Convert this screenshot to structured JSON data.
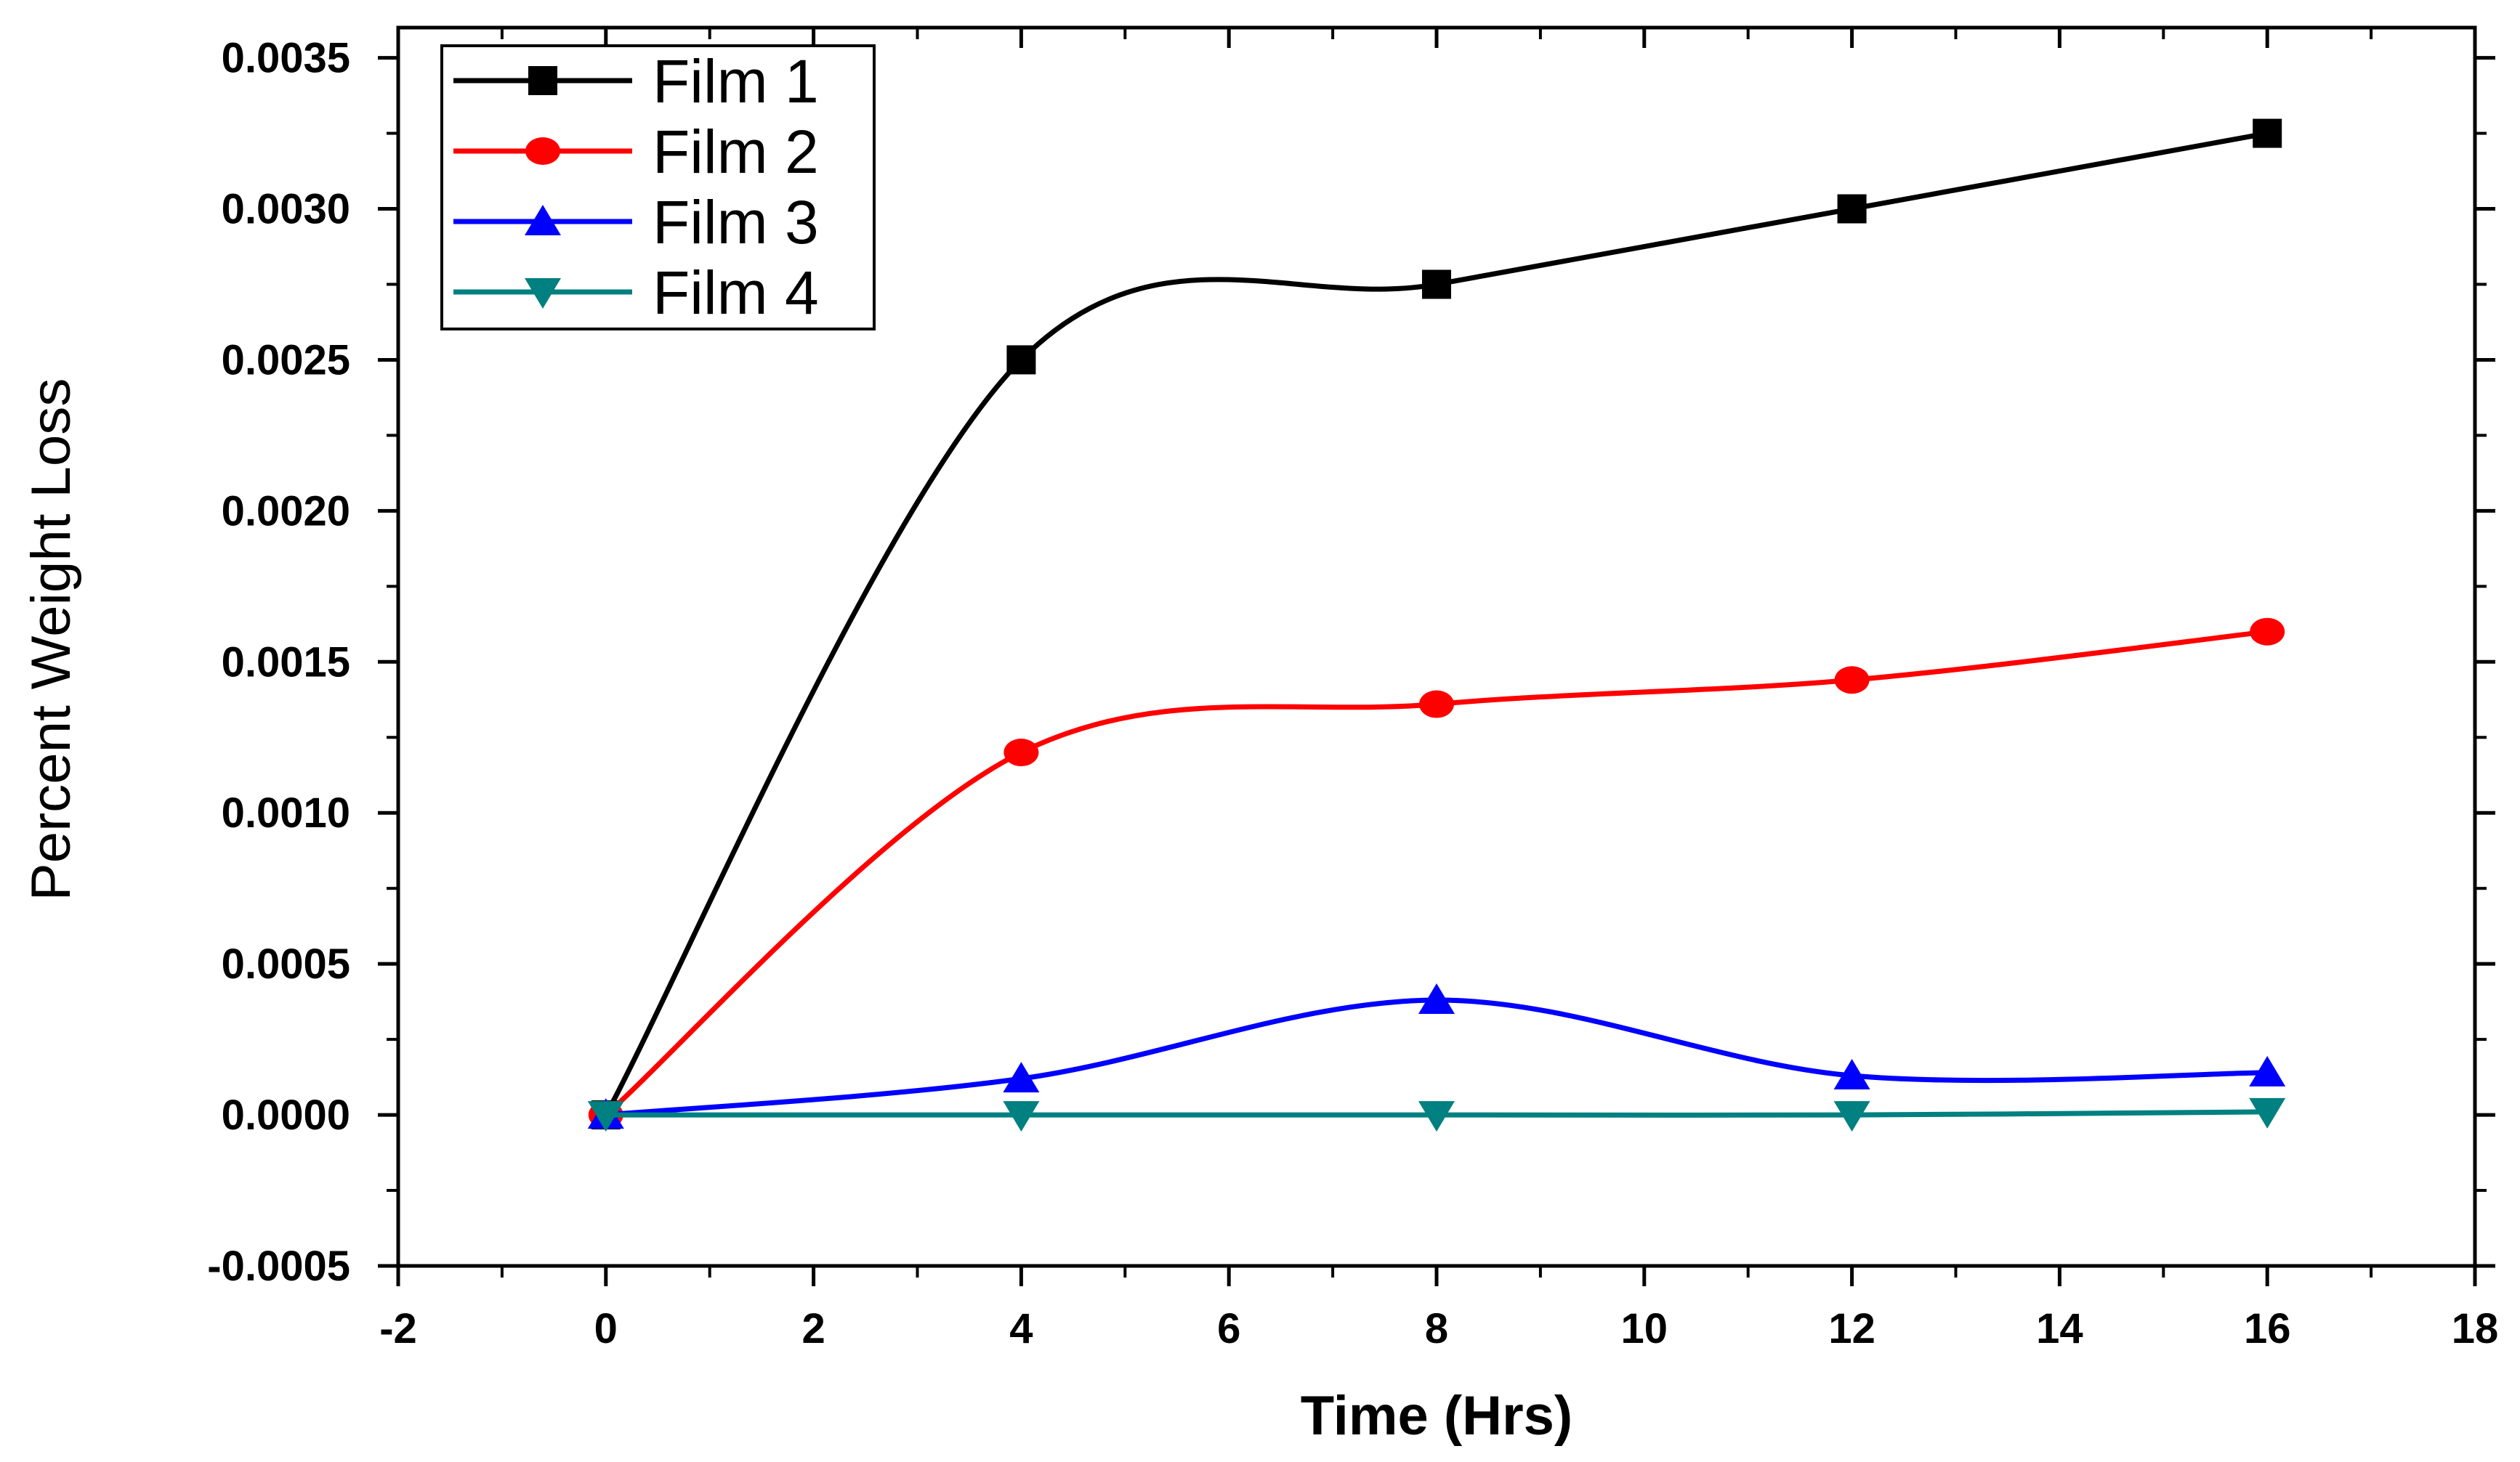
{
  "chart_data": {
    "type": "line",
    "title": "",
    "xlabel": "Time (Hrs)",
    "ylabel": "Percent Weight Loss",
    "xlim": [
      -2,
      18
    ],
    "ylim": [
      -0.0005,
      0.0036
    ],
    "x_ticks": [
      "-2",
      "0",
      "2",
      "4",
      "6",
      "8",
      "10",
      "12",
      "14",
      "16",
      "18"
    ],
    "y_ticks": [
      "-0.0005",
      "0.0000",
      "0.0005",
      "0.0010",
      "0.0015",
      "0.0020",
      "0.0025",
      "0.0030",
      "0.0035"
    ],
    "grid": false,
    "smooth": true,
    "legend_position": "top-left",
    "x": [
      0,
      4,
      8,
      12,
      16
    ],
    "series": [
      {
        "name": "Film 1",
        "values": [
          0.0,
          0.0025,
          0.00275,
          0.003,
          0.00325
        ],
        "color": "#000000",
        "marker": "square"
      },
      {
        "name": "Film 2",
        "values": [
          0.0,
          0.0012,
          0.00136,
          0.00144,
          0.0016
        ],
        "color": "#ff0000",
        "marker": "circle"
      },
      {
        "name": "Film 3",
        "values": [
          0.0,
          0.00012,
          0.00038,
          0.00013,
          0.00014
        ],
        "color": "#0000ff",
        "marker": "triangle-up"
      },
      {
        "name": "Film 4",
        "values": [
          0.0,
          0.0,
          0.0,
          0.0,
          1e-05
        ],
        "color": "#008080",
        "marker": "triangle-down"
      }
    ]
  }
}
